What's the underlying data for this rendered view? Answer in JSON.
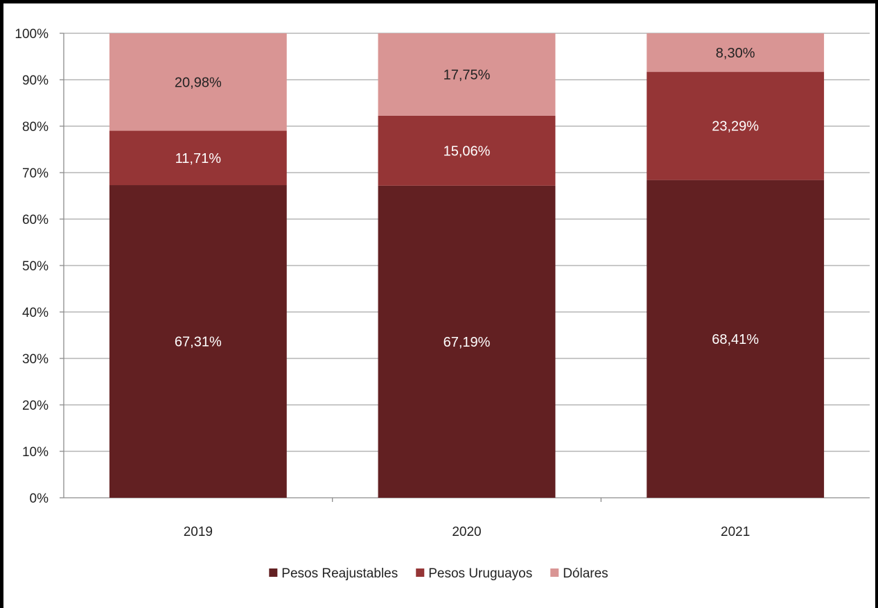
{
  "chart_data": {
    "type": "bar",
    "stacked": true,
    "categories": [
      "2019",
      "2020",
      "2021"
    ],
    "series": [
      {
        "name": "Pesos Reajustables",
        "values": [
          67.31,
          67.19,
          68.41
        ],
        "labels": [
          "67,31%",
          "67,19%",
          "68,41%"
        ],
        "color": "#622022",
        "label_color": "#ffffff"
      },
      {
        "name": "Pesos Uruguayos",
        "values": [
          11.71,
          15.06,
          23.29
        ],
        "labels": [
          "11,71%",
          "15,06%",
          "23,29%"
        ],
        "color": "#953536",
        "label_color": "#ffffff"
      },
      {
        "name": "Dólares",
        "values": [
          20.98,
          17.75,
          8.3
        ],
        "labels": [
          "20,98%",
          "17,75%",
          "8,30%"
        ],
        "color": "#d99594",
        "label_color": "#222222"
      }
    ],
    "yticks": [
      "0%",
      "10%",
      "20%",
      "30%",
      "40%",
      "50%",
      "60%",
      "70%",
      "80%",
      "90%",
      "100%"
    ],
    "ylim": [
      0,
      100
    ],
    "grid": true,
    "legend": "bottom"
  }
}
